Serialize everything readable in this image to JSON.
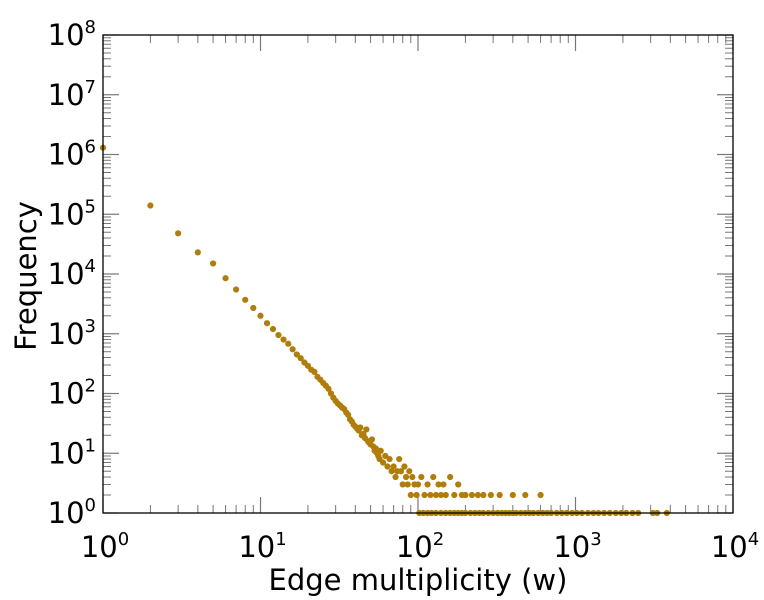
{
  "chart_data": {
    "type": "scatter",
    "title": "",
    "xlabel": "Edge multiplicity (w)",
    "ylabel": "Frequency",
    "x_scale": "log",
    "y_scale": "log",
    "xlim": [
      1,
      10000
    ],
    "ylim": [
      1,
      100000000
    ],
    "x_ticks": [
      {
        "base": "10",
        "exp": "0"
      },
      {
        "base": "10",
        "exp": "1"
      },
      {
        "base": "10",
        "exp": "2"
      },
      {
        "base": "10",
        "exp": "3"
      },
      {
        "base": "10",
        "exp": "4"
      }
    ],
    "y_ticks": [
      {
        "base": "10",
        "exp": "0"
      },
      {
        "base": "10",
        "exp": "1"
      },
      {
        "base": "10",
        "exp": "2"
      },
      {
        "base": "10",
        "exp": "3"
      },
      {
        "base": "10",
        "exp": "4"
      },
      {
        "base": "10",
        "exp": "5"
      },
      {
        "base": "10",
        "exp": "6"
      },
      {
        "base": "10",
        "exp": "7"
      },
      {
        "base": "10",
        "exp": "8"
      }
    ],
    "grid": false,
    "legend": "none",
    "marker_color": "#b07d0a",
    "series": [
      {
        "points": [
          [
            1,
            1300000
          ],
          [
            2,
            140000
          ],
          [
            3,
            48000
          ],
          [
            4,
            23000
          ],
          [
            5,
            15000
          ],
          [
            6,
            8500
          ],
          [
            7,
            5500
          ],
          [
            8,
            3700
          ],
          [
            9,
            2700
          ],
          [
            10,
            2000
          ],
          [
            11,
            1500
          ],
          [
            12,
            1200
          ],
          [
            13,
            950
          ],
          [
            14,
            800
          ],
          [
            15,
            680
          ],
          [
            16,
            550
          ],
          [
            17,
            450
          ],
          [
            18,
            390
          ],
          [
            19,
            330
          ],
          [
            20,
            290
          ],
          [
            21,
            250
          ],
          [
            22,
            230
          ],
          [
            23,
            190
          ],
          [
            24,
            170
          ],
          [
            25,
            150
          ],
          [
            26,
            135
          ],
          [
            27,
            120
          ],
          [
            28,
            100
          ],
          [
            29,
            85
          ],
          [
            30,
            75
          ],
          [
            31,
            68
          ],
          [
            32,
            63
          ],
          [
            33,
            58
          ],
          [
            34,
            55
          ],
          [
            35,
            48
          ],
          [
            36,
            44
          ],
          [
            37,
            37
          ],
          [
            38,
            34
          ],
          [
            39,
            30
          ],
          [
            40,
            28
          ],
          [
            41,
            26
          ],
          [
            42,
            24
          ],
          [
            43,
            27
          ],
          [
            44,
            20
          ],
          [
            45,
            21
          ],
          [
            46,
            18
          ],
          [
            47,
            25
          ],
          [
            48,
            16
          ],
          [
            49,
            15
          ],
          [
            50,
            14
          ],
          [
            51,
            17
          ],
          [
            52,
            13
          ],
          [
            53,
            11
          ],
          [
            54,
            12
          ],
          [
            55,
            10
          ],
          [
            56,
            9
          ],
          [
            57,
            8
          ],
          [
            58,
            11
          ],
          [
            60,
            7
          ],
          [
            62,
            9
          ],
          [
            64,
            6
          ],
          [
            66,
            8
          ],
          [
            68,
            5
          ],
          [
            70,
            6
          ],
          [
            72,
            4
          ],
          [
            74,
            5
          ],
          [
            76,
            8
          ],
          [
            78,
            5
          ],
          [
            80,
            3
          ],
          [
            82,
            6
          ],
          [
            84,
            4
          ],
          [
            86,
            3
          ],
          [
            88,
            5
          ],
          [
            90,
            2
          ],
          [
            92,
            4
          ],
          [
            95,
            3
          ],
          [
            98,
            2
          ],
          [
            100,
            3
          ],
          [
            105,
            4
          ],
          [
            110,
            2
          ],
          [
            115,
            3
          ],
          [
            120,
            2
          ],
          [
            125,
            4
          ],
          [
            130,
            2
          ],
          [
            135,
            3
          ],
          [
            140,
            2
          ],
          [
            145,
            3
          ],
          [
            150,
            2
          ],
          [
            160,
            4
          ],
          [
            170,
            2
          ],
          [
            180,
            3
          ],
          [
            190,
            2
          ],
          [
            200,
            2
          ],
          [
            220,
            2
          ],
          [
            240,
            2
          ],
          [
            260,
            2
          ],
          [
            290,
            2
          ],
          [
            330,
            2
          ],
          [
            400,
            2
          ],
          [
            480,
            2
          ],
          [
            600,
            2
          ],
          [
            102,
            1
          ],
          [
            108,
            1
          ],
          [
            115,
            1
          ],
          [
            122,
            1
          ],
          [
            130,
            1
          ],
          [
            140,
            1
          ],
          [
            150,
            1
          ],
          [
            160,
            1
          ],
          [
            170,
            1
          ],
          [
            180,
            1
          ],
          [
            190,
            1
          ],
          [
            200,
            1
          ],
          [
            215,
            1
          ],
          [
            230,
            1
          ],
          [
            245,
            1
          ],
          [
            260,
            1
          ],
          [
            280,
            1
          ],
          [
            300,
            1
          ],
          [
            320,
            1
          ],
          [
            340,
            1
          ],
          [
            360,
            1
          ],
          [
            380,
            1
          ],
          [
            400,
            1
          ],
          [
            420,
            1
          ],
          [
            450,
            1
          ],
          [
            480,
            1
          ],
          [
            510,
            1
          ],
          [
            540,
            1
          ],
          [
            580,
            1
          ],
          [
            620,
            1
          ],
          [
            660,
            1
          ],
          [
            700,
            1
          ],
          [
            760,
            1
          ],
          [
            820,
            1
          ],
          [
            880,
            1
          ],
          [
            950,
            1
          ],
          [
            1020,
            1
          ],
          [
            1100,
            1
          ],
          [
            1200,
            1
          ],
          [
            1300,
            1
          ],
          [
            1400,
            1
          ],
          [
            1520,
            1
          ],
          [
            1650,
            1
          ],
          [
            1800,
            1
          ],
          [
            1950,
            1
          ],
          [
            2100,
            1
          ],
          [
            2300,
            1
          ],
          [
            2500,
            1
          ],
          [
            3100,
            1
          ],
          [
            3300,
            1
          ],
          [
            3800,
            1
          ]
        ]
      }
    ]
  }
}
